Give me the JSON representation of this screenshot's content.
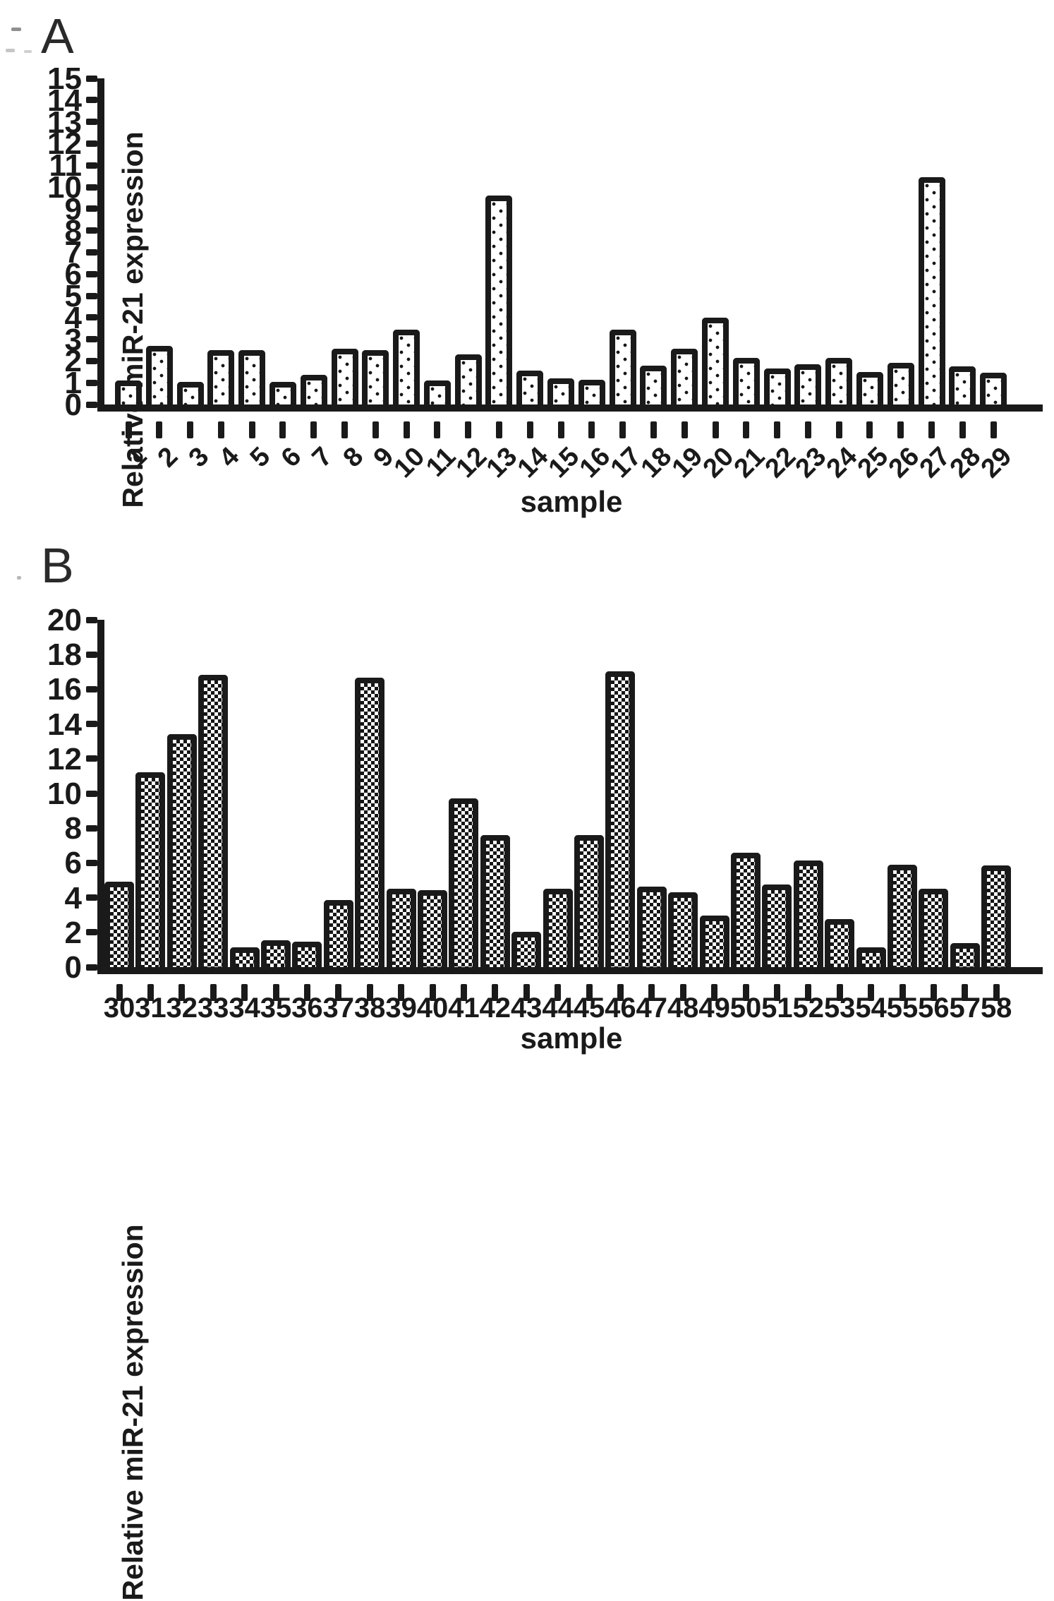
{
  "colors": {
    "ink": "#1a1a1a",
    "paper": "#ffffff"
  },
  "chart_data": [
    {
      "type": "bar",
      "panel_label": "A",
      "ylabel": "Relative miR-21 expression",
      "xlabel": "sample",
      "ylim": [
        0,
        15
      ],
      "ytick_step": 1,
      "ytick_labels": [
        "0",
        "1",
        "2",
        "3",
        "4",
        "5",
        "6",
        "7",
        "8",
        "9",
        "10",
        "11",
        "12",
        "13",
        "14",
        "15"
      ],
      "xtick_label_rotation": -45,
      "bar_pattern": "dotted",
      "grid": "off",
      "legend": "none",
      "categories": [
        "1",
        "2",
        "3",
        "4",
        "5",
        "6",
        "7",
        "8",
        "9",
        "10",
        "11",
        "12",
        "13",
        "14",
        "15",
        "16",
        "17",
        "18",
        "19",
        "20",
        "21",
        "22",
        "23",
        "24",
        "25",
        "26",
        "27",
        "28",
        "29"
      ],
      "values": [
        1.1,
        2.7,
        1.05,
        2.5,
        2.5,
        1.05,
        1.35,
        2.55,
        2.5,
        3.45,
        1.1,
        2.3,
        9.6,
        1.55,
        1.2,
        1.15,
        3.45,
        1.8,
        2.55,
        4.0,
        2.15,
        1.65,
        1.85,
        2.15,
        1.5,
        1.9,
        10.45,
        1.75,
        1.45
      ]
    },
    {
      "type": "bar",
      "panel_label": "B",
      "ylabel": "Relative miR-21 expression",
      "xlabel": "sample",
      "ylim": [
        0,
        20
      ],
      "ytick_step": 2,
      "ytick_labels": [
        "0",
        "2",
        "4",
        "6",
        "8",
        "10",
        "12",
        "14",
        "16",
        "18",
        "20"
      ],
      "xtick_label_rotation": 0,
      "bar_pattern": "checkered",
      "grid": "off",
      "legend": "none",
      "categories": [
        "30",
        "31",
        "32",
        "33",
        "34",
        "35",
        "36",
        "37",
        "38",
        "39",
        "40",
        "41",
        "42",
        "43",
        "44",
        "45",
        "46",
        "47",
        "48",
        "49",
        "50",
        "51",
        "52",
        "53",
        "54",
        "55",
        "56",
        "57",
        "58"
      ],
      "values": [
        4.9,
        11.2,
        13.4,
        16.85,
        1.15,
        1.55,
        1.45,
        3.85,
        16.65,
        4.5,
        4.45,
        9.7,
        7.6,
        2.05,
        4.5,
        7.6,
        17.05,
        4.65,
        4.3,
        2.95,
        6.6,
        4.75,
        6.15,
        2.75,
        1.15,
        5.9,
        4.5,
        1.4,
        5.85
      ]
    }
  ]
}
